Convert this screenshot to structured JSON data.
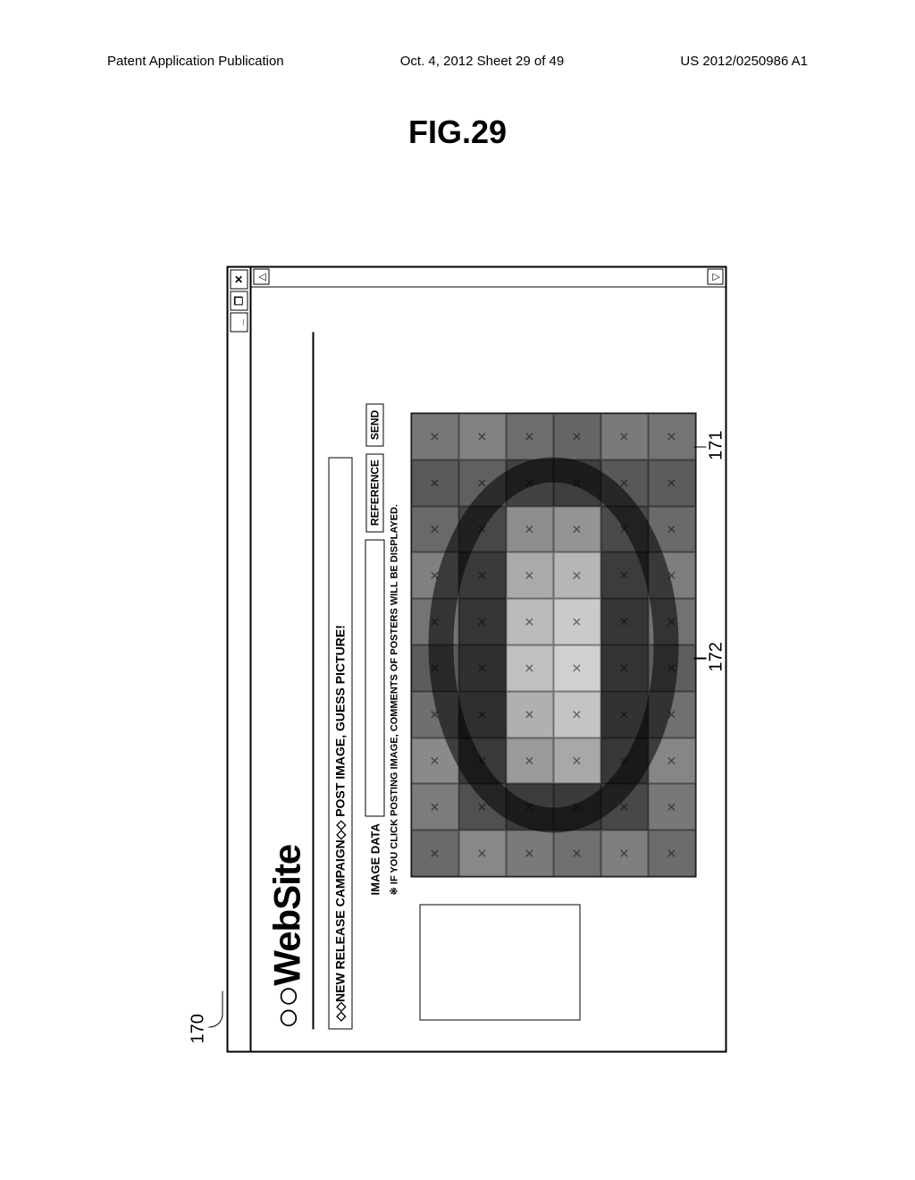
{
  "page_header": {
    "left_text": "Patent Application Publication",
    "center_text": "Oct. 4, 2012   Sheet 29 of 49",
    "right_text": "US 2012/0250986 A1"
  },
  "figure_title": "FIG.29",
  "refs": {
    "window_ref": "170",
    "mosaic_ref": "171",
    "small_panel_ref": "172"
  },
  "window": {
    "titlebar": {
      "min_label": "_",
      "max_label": "❐",
      "close_label": "✕"
    },
    "site_title": "○○WebSite",
    "campaign_text": "◇◇NEW RELEASE CAMPAIGN◇◇  POST IMAGE, GUESS PICTURE!",
    "upload": {
      "label": "IMAGE DATA",
      "value": "",
      "reference_btn": "REFERENCE",
      "send_btn": "SEND"
    },
    "hint": "※ IF YOU CLICK POSTING IMAGE, COMMENTS OF POSTERS WILL BE DISPLAYED.",
    "scrollbar": {
      "up": "△",
      "down": "▽"
    }
  },
  "mosaic": {
    "rows": 6,
    "cols": 10,
    "tile_shades": [
      [
        "#6a6a6a",
        "#7c7c7c",
        "#8a8a8a",
        "#6f6f6f",
        "#5c5c5c",
        "#747474",
        "#808080",
        "#696969",
        "#5a5a5a",
        "#777777"
      ],
      [
        "#888888",
        "#505050",
        "#3a3a3a",
        "#2f2f2f",
        "#303030",
        "#353535",
        "#3a3a3a",
        "#474747",
        "#606060",
        "#828282"
      ],
      [
        "#7a7a7a",
        "#3c3c3c",
        "#9a9a9a",
        "#b0b0b0",
        "#c0c0c0",
        "#bababa",
        "#aaaaaa",
        "#8d8d8d",
        "#424242",
        "#6d6d6d"
      ],
      [
        "#707070",
        "#3a3a3a",
        "#a8a8a8",
        "#c4c4c4",
        "#d0d0d0",
        "#cacaca",
        "#b6b6b6",
        "#949494",
        "#3e3e3e",
        "#656565"
      ],
      [
        "#7e7e7e",
        "#484848",
        "#383838",
        "#323232",
        "#343434",
        "#363636",
        "#3c3c3c",
        "#4a4a4a",
        "#585858",
        "#7a7a7a"
      ],
      [
        "#6c6c6c",
        "#787878",
        "#868686",
        "#707070",
        "#5e5e5e",
        "#727272",
        "#7e7e7e",
        "#6a6a6a",
        "#5c5c5c",
        "#747474"
      ]
    ],
    "ring_color": "rgba(0,0,0,0.55)"
  }
}
